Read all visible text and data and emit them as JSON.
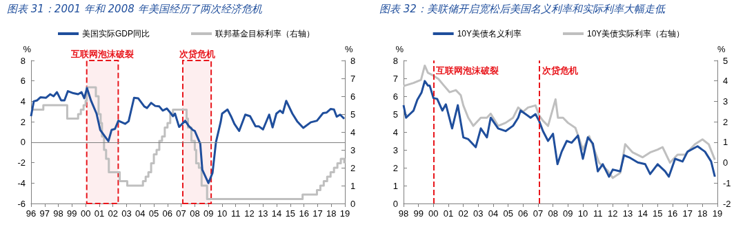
{
  "chart_data": [
    {
      "type": "line",
      "title": "图表 31：2001 年和 2008 年美国经历了两次经济危机",
      "ylabel": "%",
      "y2label": "%",
      "series": [
        {
          "name": "美国实际GDP同比",
          "color": "#1f4e9c",
          "x": [
            1996.0,
            1996.2,
            1996.45,
            1996.7,
            1997.1,
            1997.4,
            1997.65,
            1997.9,
            1998.2,
            1998.45,
            1998.7,
            1999.1,
            1999.45,
            1999.7,
            1999.9,
            2000.1,
            2000.4,
            2000.8,
            2001.07,
            2001.67,
            2001.9,
            2002.15,
            2002.4,
            2002.9,
            2003.15,
            2003.55,
            2003.85,
            2004.3,
            2004.5,
            2004.8,
            2005.1,
            2005.4,
            2005.65,
            2005.95,
            2006.2,
            2006.4,
            2006.55,
            2006.85,
            2007.3,
            2007.55,
            2007.85,
            2008.0,
            2008.4,
            2008.55,
            2009.0,
            2009.3,
            2009.55,
            2009.9,
            2010.0,
            2010.4,
            2010.65,
            2010.9,
            2011.25,
            2011.7,
            2012.05,
            2012.45,
            2012.7,
            2013.0,
            2013.45,
            2013.7,
            2013.98,
            2014.25,
            2014.45,
            2014.7,
            2015.15,
            2015.5,
            2015.95,
            2016.5,
            2016.95,
            2017.4,
            2017.65,
            2017.95,
            2018.2,
            2018.4,
            2018.65,
            2018.95
          ],
          "values": [
            2.55,
            4.0,
            4.1,
            4.4,
            4.35,
            4.7,
            4.5,
            4.9,
            4.1,
            4.1,
            5.0,
            4.8,
            4.7,
            4.9,
            4.3,
            5.3,
            4.05,
            2.8,
            1.2,
            0.1,
            1.2,
            1.3,
            2.1,
            1.8,
            2.05,
            4.35,
            4.3,
            3.5,
            3.35,
            3.85,
            3.55,
            3.5,
            3.1,
            3.3,
            2.9,
            2.55,
            2.8,
            1.5,
            2.1,
            1.6,
            1.2,
            1.1,
            -0.15,
            -2.7,
            -4.0,
            -3.0,
            0.0,
            2.0,
            2.8,
            3.2,
            2.55,
            1.8,
            1.1,
            2.7,
            2.55,
            1.55,
            1.55,
            1.25,
            2.7,
            1.45,
            2.8,
            3.1,
            2.85,
            4.05,
            2.8,
            2.05,
            1.4,
            1.95,
            2.1,
            2.85,
            2.9,
            3.25,
            3.2,
            2.5,
            2.7,
            2.3
          ]
        },
        {
          "name": "联邦基金目标利率（右轴）",
          "color": "#bfbfbf",
          "type": "step",
          "axis": "y2",
          "x": [
            1996.0,
            1996.9,
            1998.65,
            1999.45,
            1999.65,
            1999.85,
            2000.0,
            2000.08,
            2000.75,
            2000.95,
            2001.1,
            2001.2,
            2001.35,
            2001.5,
            2001.7,
            2002.5,
            2003.05,
            2004.0,
            2004.2,
            2004.4,
            2004.6,
            2004.8,
            2005.0,
            2005.2,
            2005.4,
            2005.6,
            2005.8,
            2006.0,
            2006.2,
            2006.4,
            2007.4,
            2007.5,
            2007.75,
            2008.0,
            2008.1,
            2008.3,
            2008.5,
            2008.9,
            2015.9,
            2016.95,
            2017.2,
            2017.45,
            2017.7,
            2017.95,
            2018.2,
            2018.45,
            2018.7,
            2018.95
          ],
          "values": [
            5.25,
            5.5,
            4.75,
            5.0,
            5.25,
            5.5,
            5.75,
            6.5,
            6.0,
            5.0,
            4.5,
            3.75,
            3.0,
            2.5,
            1.75,
            1.25,
            1.0,
            1.0,
            1.25,
            1.5,
            1.75,
            2.25,
            2.75,
            3.0,
            3.5,
            3.75,
            4.25,
            4.5,
            5.0,
            5.25,
            4.75,
            4.25,
            3.5,
            3.0,
            2.25,
            2.0,
            1.0,
            0.25,
            0.5,
            0.75,
            1.0,
            1.25,
            1.5,
            1.75,
            2.0,
            2.25,
            2.5,
            2.25
          ]
        }
      ],
      "xlim": [
        1996,
        2019
      ],
      "xticks": [
        {
          "value": 1996,
          "label": "96"
        },
        {
          "value": 1997,
          "label": "97"
        },
        {
          "value": 1998,
          "label": "98"
        },
        {
          "value": 1999,
          "label": "99"
        },
        {
          "value": 2000,
          "label": "00"
        },
        {
          "value": 2001,
          "label": "01"
        },
        {
          "value": 2002,
          "label": "02"
        },
        {
          "value": 2003,
          "label": "03"
        },
        {
          "value": 2004,
          "label": "04"
        },
        {
          "value": 2005,
          "label": "05"
        },
        {
          "value": 2006,
          "label": "06"
        },
        {
          "value": 2007,
          "label": "07"
        },
        {
          "value": 2008,
          "label": "08"
        },
        {
          "value": 2009,
          "label": "09"
        },
        {
          "value": 2010,
          "label": "10"
        },
        {
          "value": 2011,
          "label": "11"
        },
        {
          "value": 2012,
          "label": "12"
        },
        {
          "value": 2013,
          "label": "13"
        },
        {
          "value": 2014,
          "label": "14"
        },
        {
          "value": 2015,
          "label": "15"
        },
        {
          "value": 2016,
          "label": "16"
        },
        {
          "value": 2017,
          "label": "17"
        },
        {
          "value": 2018,
          "label": "18"
        },
        {
          "value": 2019,
          "label": "19"
        }
      ],
      "ylim": [
        -6,
        8
      ],
      "yticks": [
        -6,
        -4,
        -2,
        0,
        2,
        4,
        6,
        8
      ],
      "y2lim": [
        0,
        8
      ],
      "y2ticks": [
        0,
        1,
        2,
        3,
        4,
        5,
        6,
        7,
        8
      ],
      "bands": [
        {
          "axis": "x",
          "from": 2000.08,
          "to": 2002.39,
          "label": "互联网泡沫破裂",
          "color": "#e8151b"
        },
        {
          "axis": "x",
          "from": 2007.12,
          "to": 2009.2,
          "label": "次贷危机",
          "color": "#e8151b"
        }
      ],
      "ref_lines": [
        {
          "axis": "y",
          "value": 0,
          "color": "#7f7f7f",
          "line_style": "solid"
        }
      ],
      "legend": "top",
      "grid": false,
      "marker": "none"
    },
    {
      "type": "line",
      "title": "图表 32：美联储开启宽松后美国名义利率和实际利率大幅走低",
      "ylabel": "%",
      "y2label": "%",
      "series": [
        {
          "name": "10Y美债名义利率",
          "color": "#1f4e9c",
          "x": [
            1998.0,
            1998.17,
            1998.42,
            1998.67,
            1998.92,
            1999.2,
            1999.42,
            1999.63,
            1999.75,
            2000.0,
            2000.25,
            2000.6,
            2000.83,
            2001.25,
            2001.63,
            2002.0,
            2002.33,
            2002.83,
            2003.17,
            2003.58,
            2003.83,
            2004.33,
            2004.83,
            2005.33,
            2005.67,
            2005.83,
            2006.17,
            2006.5,
            2006.83,
            2007.08,
            2007.33,
            2007.67,
            2008.0,
            2008.3,
            2008.58,
            2008.92,
            2009.25,
            2009.67,
            2010.0,
            2010.33,
            2010.67,
            2011.0,
            2011.33,
            2011.75,
            2012.0,
            2012.5,
            2012.75,
            2013.17,
            2013.67,
            2014.17,
            2014.5,
            2015.0,
            2015.5,
            2015.75,
            2016.17,
            2016.67,
            2017.0,
            2017.67,
            2018.17,
            2018.58,
            2018.83
          ],
          "values": [
            5.5,
            4.8,
            5.0,
            5.2,
            5.8,
            6.2,
            6.85,
            6.6,
            6.6,
            5.9,
            5.85,
            5.2,
            5.55,
            4.2,
            5.5,
            3.7,
            3.6,
            3.15,
            4.2,
            3.7,
            4.8,
            4.2,
            4.05,
            4.35,
            4.8,
            5.2,
            5.0,
            4.8,
            5.0,
            4.6,
            4.05,
            3.5,
            3.9,
            2.2,
            2.9,
            3.5,
            3.4,
            3.8,
            2.5,
            3.7,
            3.35,
            1.8,
            2.2,
            1.5,
            1.9,
            1.8,
            2.7,
            2.55,
            2.3,
            2.2,
            1.65,
            2.2,
            1.8,
            1.5,
            2.5,
            2.35,
            2.9,
            3.2,
            2.9,
            2.35,
            1.5
          ]
        },
        {
          "name": "10Y美债实际利率（右轴）",
          "color": "#bfbfbf",
          "axis": "y2",
          "x": [
            1998.0,
            1998.67,
            1999.17,
            1999.42,
            1999.63,
            1999.9,
            2000.33,
            2000.67,
            2001.08,
            2001.5,
            2001.83,
            2002.0,
            2002.33,
            2002.67,
            2003.17,
            2003.58,
            2003.83,
            2004.33,
            2004.83,
            2005.33,
            2005.67,
            2006.0,
            2006.33,
            2006.83,
            2007.08,
            2007.33,
            2007.67,
            2008.17,
            2008.33,
            2008.67,
            2009.0,
            2009.5,
            2010.0,
            2010.42,
            2010.83,
            2011.08,
            2011.67,
            2012.0,
            2012.5,
            2012.83,
            2013.33,
            2014.0,
            2014.5,
            2015.0,
            2015.33,
            2015.83,
            2016.33,
            2016.83,
            2017.5,
            2018.0,
            2018.42,
            2018.83
          ],
          "values": [
            3.75,
            3.9,
            4.05,
            4.75,
            4.4,
            4.3,
            4.1,
            3.8,
            3.45,
            3.55,
            3.3,
            2.8,
            2.2,
            1.8,
            2.2,
            2.2,
            2.4,
            1.8,
            1.95,
            2.2,
            2.7,
            2.5,
            2.7,
            2.8,
            2.3,
            2.05,
            1.8,
            3.1,
            2.2,
            2.2,
            1.95,
            1.7,
            0.64,
            1.3,
            0.5,
            0.0,
            -0.4,
            -0.75,
            -0.5,
            0.9,
            0.5,
            0.26,
            0.5,
            0.64,
            0.76,
            0.0,
            0.39,
            0.39,
            0.9,
            1.14,
            0.9,
            0.14
          ]
        }
      ],
      "xlim": [
        1998,
        2019
      ],
      "xticks": [
        {
          "value": 1998,
          "label": "98"
        },
        {
          "value": 1999,
          "label": "99"
        },
        {
          "value": 2000,
          "label": "00"
        },
        {
          "value": 2001,
          "label": "01"
        },
        {
          "value": 2002,
          "label": "02"
        },
        {
          "value": 2003,
          "label": "03"
        },
        {
          "value": 2004,
          "label": "04"
        },
        {
          "value": 2005,
          "label": "05"
        },
        {
          "value": 2006,
          "label": "06"
        },
        {
          "value": 2007,
          "label": "07"
        },
        {
          "value": 2008,
          "label": "08"
        },
        {
          "value": 2009,
          "label": "09"
        },
        {
          "value": 2010,
          "label": "10"
        },
        {
          "value": 2011,
          "label": "11"
        },
        {
          "value": 2012,
          "label": "12"
        },
        {
          "value": 2013,
          "label": "13"
        },
        {
          "value": 2014,
          "label": "14"
        },
        {
          "value": 2015,
          "label": "15"
        },
        {
          "value": 2016,
          "label": "16"
        },
        {
          "value": 2017,
          "label": "17"
        },
        {
          "value": 2018,
          "label": "18"
        },
        {
          "value": 2019,
          "label": "19"
        }
      ],
      "ylim": [
        0,
        8
      ],
      "yticks": [
        0,
        1,
        2,
        3,
        4,
        5,
        6,
        7,
        8
      ],
      "y2lim": [
        -2,
        5
      ],
      "y2ticks": [
        -2,
        -1,
        0,
        1,
        2,
        3,
        4,
        5
      ],
      "ref_lines": [
        {
          "axis": "x",
          "value": 2000.0,
          "label": "互联网泡沫破裂",
          "color": "#e8151b",
          "line_style": "dashed"
        },
        {
          "axis": "x",
          "value": 2007.08,
          "label": "次贷危机",
          "color": "#e8151b",
          "line_style": "dashed"
        }
      ],
      "legend": "top",
      "grid": false,
      "marker": "none"
    }
  ]
}
